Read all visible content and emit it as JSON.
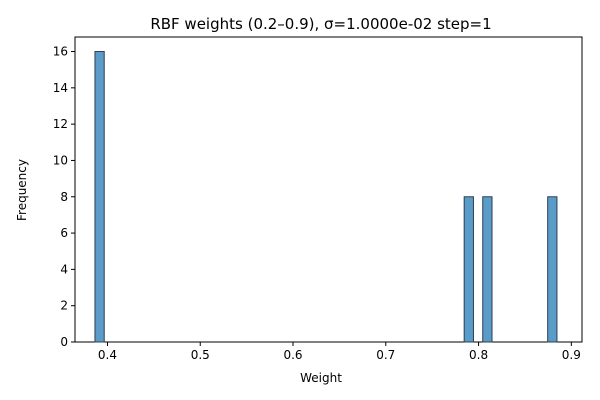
{
  "chart_data": {
    "type": "bar",
    "title": "RBF weights (0.2–0.9), σ=1.0000e-02 step=1",
    "xlabel": "Weight",
    "ylabel": "Frequency",
    "xlim": [
      0.365,
      0.9115
    ],
    "ylim": [
      0,
      16.8
    ],
    "xticks": [
      0.4,
      0.5,
      0.6,
      0.7,
      0.8,
      0.9
    ],
    "xtick_labels": [
      "0.4",
      "0.5",
      "0.6",
      "0.7",
      "0.8",
      "0.9"
    ],
    "yticks": [
      0,
      2,
      4,
      6,
      8,
      10,
      12,
      14,
      16
    ],
    "ytick_labels": [
      "0",
      "2",
      "4",
      "6",
      "8",
      "10",
      "12",
      "14",
      "16"
    ],
    "bins": [
      {
        "x0": 0.3865,
        "x1": 0.3965,
        "value": 16
      },
      {
        "x0": 0.7845,
        "x1": 0.7945,
        "value": 8
      },
      {
        "x0": 0.8045,
        "x1": 0.8145,
        "value": 8
      },
      {
        "x0": 0.8745,
        "x1": 0.8845,
        "value": 8
      }
    ],
    "bar_color": "#5b9bc8",
    "edge_color": "#2b3f55",
    "grid": false,
    "legend": "none"
  }
}
